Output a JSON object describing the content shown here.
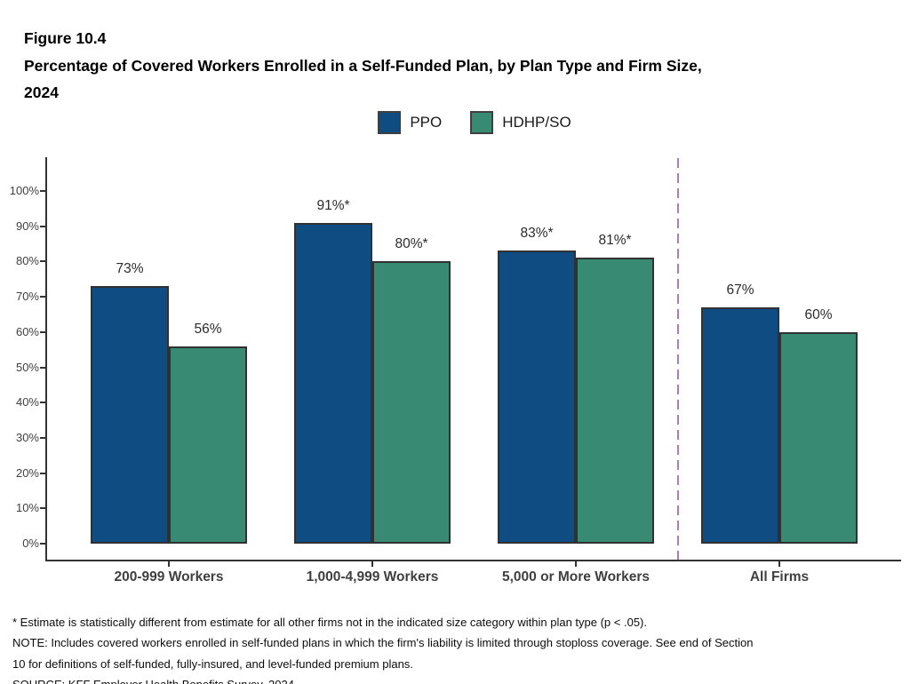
{
  "header": {
    "figure_label": "Figure 10.4",
    "title_lines": [
      "Percentage of Covered Workers Enrolled in a Self-Funded Plan, by Plan Type and Firm Size,",
      "2024"
    ]
  },
  "chart_data": {
    "type": "bar",
    "title": "Percentage of Covered Workers Enrolled in a Self-Funded Plan, by Plan Type and Firm Size, 2024",
    "categories": [
      "200-999 Workers",
      "1,000-4,999 Workers",
      "5,000 or More Workers",
      "All Firms"
    ],
    "series": [
      {
        "name": "PPO",
        "color": "#0F4C81",
        "values": [
          73,
          91,
          83,
          67
        ],
        "value_labels": [
          "73%",
          "91%*",
          "83%*",
          "67%"
        ]
      },
      {
        "name": "HDHP/SO",
        "color": "#388A73",
        "values": [
          56,
          80,
          81,
          60
        ],
        "value_labels": [
          "56%",
          "80%*",
          "81%*",
          "60%"
        ]
      }
    ],
    "xlabel": "",
    "ylabel": "",
    "ylim": [
      0,
      100
    ],
    "ytick_step": 10,
    "ytick_suffix": "%",
    "grid": false,
    "legend_position": "top",
    "divider_after_category_index": 2,
    "divider_color": "#AC7EB8",
    "bar_border_color": "#2F3133",
    "axis_color": "#333333"
  },
  "footnotes": [
    "* Estimate is statistically different from estimate for all other firms not in the indicated size category within plan type (p < .05).",
    "NOTE: Includes covered workers enrolled in self-funded plans in which the firm's liability is limited through stoploss coverage. See end of Section",
    "10 for definitions of self-funded, fully-insured, and level-funded premium plans.",
    "SOURCE: KFF Employer Health Benefits Survey, 2024"
  ]
}
